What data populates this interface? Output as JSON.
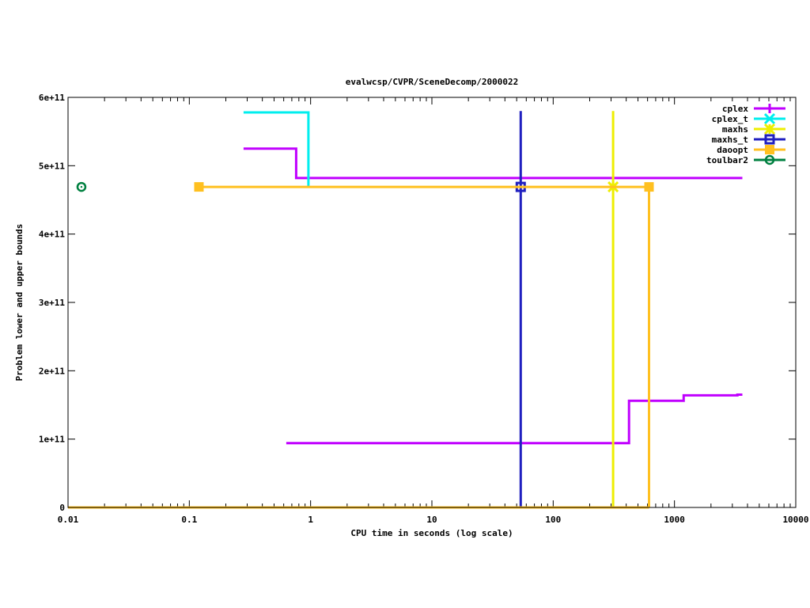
{
  "chart_data": {
    "type": "line",
    "title": "evalwcsp/CVPR/SceneDecomp/2000022",
    "xlabel": "CPU time in seconds (log scale)",
    "ylabel": "Problem lower and upper bounds",
    "x_scale": "log",
    "xlim": [
      0.01,
      10000
    ],
    "ylim": [
      0,
      600000000000
    ],
    "x_ticks": [
      {
        "v": 0.01,
        "label": "0.01"
      },
      {
        "v": 0.1,
        "label": "0.1"
      },
      {
        "v": 1,
        "label": "1"
      },
      {
        "v": 10,
        "label": "10"
      },
      {
        "v": 100,
        "label": "100"
      },
      {
        "v": 1000,
        "label": "1000"
      },
      {
        "v": 10000,
        "label": "10000"
      }
    ],
    "y_ticks": [
      {
        "v": 0,
        "label": "0"
      },
      {
        "v": 100000000000,
        "label": "1e+11"
      },
      {
        "v": 200000000000,
        "label": "2e+11"
      },
      {
        "v": 300000000000,
        "label": "3e+11"
      },
      {
        "v": 400000000000,
        "label": "4e+11"
      },
      {
        "v": 500000000000,
        "label": "5e+11"
      },
      {
        "v": 600000000000,
        "label": "6e+11"
      }
    ],
    "grid": false,
    "legend_position": "top-right",
    "series": [
      {
        "name": "cplex",
        "color": "#c000ff",
        "marker": "plus",
        "paths": [
          [
            [
              0.28,
              525000000000
            ],
            [
              0.76,
              525000000000
            ],
            [
              0.76,
              482000000000
            ],
            [
              3630,
              482000000000
            ]
          ],
          [
            [
              0.63,
              94000000000
            ],
            [
              422,
              94000000000
            ],
            [
              422,
              156000000000
            ],
            [
              1190,
              156000000000
            ],
            [
              1190,
              164000000000
            ],
            [
              3300,
              164000000000
            ],
            [
              3300,
              165000000000
            ],
            [
              3630,
              165000000000
            ]
          ]
        ],
        "markers": []
      },
      {
        "name": "cplex_t",
        "color": "#00eeee",
        "marker": "cross",
        "paths": [
          [
            [
              0.28,
              578000000000
            ],
            [
              0.96,
              578000000000
            ],
            [
              0.96,
              470000000000
            ]
          ]
        ],
        "markers": []
      },
      {
        "name": "maxhs",
        "color": "#eeee00",
        "marker": "star",
        "paths": [
          [
            [
              312,
              580000000000
            ],
            [
              312,
              0
            ]
          ]
        ],
        "markers": [
          [
            312,
            469000000000
          ]
        ]
      },
      {
        "name": "maxhs_t",
        "color": "#2020c0",
        "marker": "open-square",
        "paths": [
          [
            [
              54,
              580000000000
            ],
            [
              54,
              0
            ]
          ]
        ],
        "markers": [
          [
            54,
            469000000000
          ]
        ]
      },
      {
        "name": "daoopt",
        "color": "#ffc020",
        "marker": "filled-square",
        "paths": [
          [
            [
              0.12,
              469000000000
            ],
            [
              617,
              469000000000
            ],
            [
              617,
              0
            ]
          ],
          [
            [
              0.01,
              0
            ],
            [
              617,
              0
            ]
          ]
        ],
        "markers": [
          [
            0.12,
            469000000000
          ],
          [
            617,
            469000000000
          ]
        ]
      },
      {
        "name": "toulbar2",
        "color": "#008040",
        "marker": "open-circle",
        "paths": [],
        "markers": [
          [
            0.0129,
            469000000000
          ]
        ]
      }
    ]
  }
}
